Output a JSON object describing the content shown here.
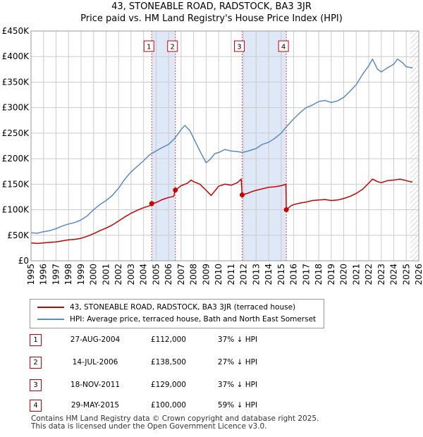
{
  "title_line1": "43, STONEABLE ROAD, RADSTOCK, BA3 3JR",
  "title_line2": "Price paid vs. HM Land Registry's House Price Index (HPI)",
  "colors": {
    "property": "#cc0000",
    "hpi": "#5b8ac6",
    "shade": "#dfe8f7",
    "grid": "#cccccc",
    "marker_line": "#cc0000"
  },
  "chart_data": {
    "type": "line",
    "title": "Price paid vs. HM Land Registry's House Price Index (HPI)",
    "xlabel": "",
    "ylabel": "",
    "xlim": [
      1995,
      2026
    ],
    "ylim": [
      0,
      450000
    ],
    "x_ticks": [
      1995,
      1996,
      1997,
      1998,
      1999,
      2000,
      2001,
      2002,
      2003,
      2004,
      2005,
      2006,
      2007,
      2008,
      2009,
      2010,
      2011,
      2012,
      2013,
      2014,
      2015,
      2016,
      2017,
      2018,
      2019,
      2020,
      2021,
      2022,
      2023,
      2024,
      2025,
      2026
    ],
    "y_ticks": [
      {
        "value": 0,
        "label": "£0"
      },
      {
        "value": 50000,
        "label": "£50K"
      },
      {
        "value": 100000,
        "label": "£100K"
      },
      {
        "value": 150000,
        "label": "£150K"
      },
      {
        "value": 200000,
        "label": "£200K"
      },
      {
        "value": 250000,
        "label": "£250K"
      },
      {
        "value": 300000,
        "label": "£300K"
      },
      {
        "value": 350000,
        "label": "£350K"
      },
      {
        "value": 400000,
        "label": "£400K"
      },
      {
        "value": 450000,
        "label": "£450K"
      }
    ],
    "grid": true,
    "shaded_ranges": [
      [
        2004.65,
        2006.54
      ],
      [
        2011.88,
        2015.41
      ]
    ],
    "hatched_from": 2025.3,
    "series": [
      {
        "name": "HPI: Average price, terraced house, Bath and North East Somerset",
        "color": "#5b8ac6",
        "x": [
          1995,
          1995.5,
          1996,
          1996.5,
          1997,
          1997.5,
          1998,
          1998.5,
          1999,
          1999.5,
          2000,
          2000.5,
          2001,
          2001.5,
          2002,
          2002.5,
          2003,
          2003.5,
          2004,
          2004.5,
          2005,
          2005.5,
          2006,
          2006.5,
          2007,
          2007.3,
          2007.7,
          2008,
          2008.5,
          2009,
          2009.3,
          2009.7,
          2010,
          2010.5,
          2011,
          2011.5,
          2011.9,
          2012.5,
          2013,
          2013.5,
          2014,
          2014.5,
          2015,
          2015.4,
          2016,
          2016.5,
          2017,
          2017.5,
          2018,
          2018.5,
          2019,
          2019.5,
          2020,
          2020.5,
          2021,
          2021.5,
          2022,
          2022.3,
          2022.7,
          2023,
          2023.5,
          2024,
          2024.3,
          2024.7,
          2025,
          2025.5
        ],
        "y": [
          55000,
          54000,
          57000,
          59000,
          63000,
          68000,
          72000,
          75000,
          80000,
          88000,
          100000,
          110000,
          118000,
          128000,
          142000,
          160000,
          174000,
          185000,
          196000,
          208000,
          215000,
          222000,
          228000,
          240000,
          257000,
          265000,
          255000,
          240000,
          215000,
          192000,
          198000,
          210000,
          212000,
          218000,
          215000,
          214000,
          212000,
          216000,
          220000,
          228000,
          232000,
          240000,
          250000,
          262000,
          278000,
          290000,
          300000,
          305000,
          312000,
          314000,
          310000,
          313000,
          320000,
          332000,
          345000,
          365000,
          382000,
          395000,
          375000,
          370000,
          378000,
          385000,
          395000,
          388000,
          380000,
          378000
        ]
      },
      {
        "name": "43, STONEABLE ROAD, RADSTOCK, BA3 3JR (terraced house)",
        "color": "#cc0000",
        "x": [
          1995,
          1995.5,
          1996,
          1996.5,
          1997,
          1997.5,
          1998,
          1998.5,
          1999,
          1999.5,
          2000,
          2000.5,
          2001,
          2001.5,
          2002,
          2002.5,
          2003,
          2003.5,
          2004,
          2004.5,
          2004.65,
          2005,
          2005.5,
          2006,
          2006.4,
          2006.54,
          2007,
          2007.5,
          2007.8,
          2008,
          2008.5,
          2009,
          2009.4,
          2009.8,
          2010,
          2010.5,
          2011,
          2011.5,
          2011.8,
          2011.88,
          2012.3,
          2012.6,
          2013,
          2013.5,
          2014,
          2014.5,
          2015,
          2015.38,
          2015.41,
          2015.8,
          2016,
          2016.5,
          2017,
          2017.5,
          2018,
          2018.5,
          2019,
          2019.5,
          2020,
          2020.5,
          2021,
          2021.5,
          2022,
          2022.3,
          2022.7,
          2023,
          2023.5,
          2024,
          2024.5,
          2025,
          2025.5
        ],
        "y": [
          35000,
          34000,
          35000,
          36000,
          37000,
          39000,
          41000,
          42000,
          44000,
          48000,
          53000,
          59000,
          64000,
          70000,
          78000,
          86000,
          93000,
          99000,
          104000,
          108000,
          112000,
          114000,
          120000,
          124000,
          126000,
          138500,
          147000,
          152000,
          158000,
          155000,
          150000,
          138000,
          128000,
          140000,
          146000,
          150000,
          148000,
          153000,
          160000,
          129000,
          132000,
          135000,
          138000,
          141000,
          144000,
          145000,
          147000,
          150000,
          100000,
          108000,
          110000,
          113000,
          115000,
          118000,
          119000,
          120000,
          118000,
          119000,
          122000,
          126000,
          132000,
          140000,
          152000,
          160000,
          155000,
          153000,
          157000,
          158000,
          160000,
          157000,
          154000
        ]
      }
    ],
    "sales": [
      {
        "n": "1",
        "x": 2004.65,
        "price": 112000
      },
      {
        "n": "2",
        "x": 2006.54,
        "price": 138500
      },
      {
        "n": "3",
        "x": 2011.88,
        "price": 129000
      },
      {
        "n": "4",
        "x": 2015.41,
        "price": 100000
      }
    ]
  },
  "legend": {
    "property_label": "43, STONEABLE ROAD, RADSTOCK, BA3 3JR (terraced house)",
    "hpi_label": "HPI: Average price, terraced house, Bath and North East Somerset"
  },
  "transactions": [
    {
      "n": "1",
      "date": "27-AUG-2004",
      "price": "£112,000",
      "hpi": "37% ↓ HPI"
    },
    {
      "n": "2",
      "date": "14-JUL-2006",
      "price": "£138,500",
      "hpi": "27% ↓ HPI"
    },
    {
      "n": "3",
      "date": "18-NOV-2011",
      "price": "£129,000",
      "hpi": "37% ↓ HPI"
    },
    {
      "n": "4",
      "date": "29-MAY-2015",
      "price": "£100,000",
      "hpi": "59% ↓ HPI"
    }
  ],
  "footer": {
    "line1": "Contains HM Land Registry data © Crown copyright and database right 2025.",
    "line2": "This data is licensed under the Open Government Licence v3.0."
  }
}
